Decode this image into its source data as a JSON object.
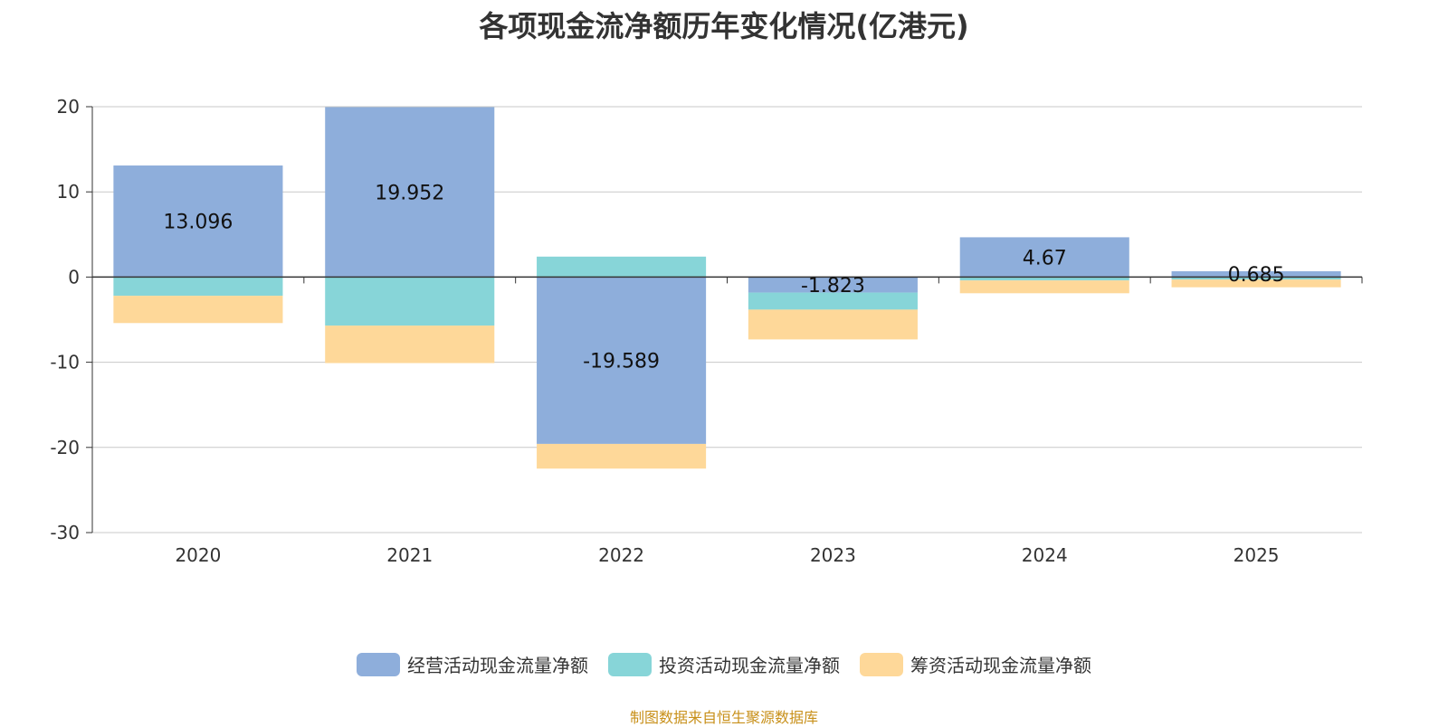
{
  "title": "各项现金流净额历年变化情况(亿港元)",
  "source": "制图数据来自恒生聚源数据库",
  "chart_data": {
    "type": "bar",
    "stacked": true,
    "title": "各项现金流净额历年变化情况(亿港元)",
    "categories": [
      "2020",
      "2021",
      "2022",
      "2023",
      "2024",
      "2025"
    ],
    "ylim": [
      -30,
      20
    ],
    "yticks": [
      20,
      10,
      0,
      -10,
      -20,
      -30
    ],
    "grid": true,
    "legend": "bottom",
    "series": [
      {
        "name": "经营活动现金流量净额",
        "color": "#8eaedb",
        "values": [
          13.096,
          19.952,
          -19.589,
          -1.823,
          4.67,
          0.685
        ],
        "labels": [
          "13.096",
          "19.952",
          "-19.589",
          "-1.823",
          "4.67",
          "0.685"
        ]
      },
      {
        "name": "投资活动现金流量净额",
        "color": "#87d5d8",
        "values": [
          -2.2,
          -5.7,
          2.4,
          -2.0,
          -0.4,
          -0.3
        ]
      },
      {
        "name": "筹资活动现金流量净额",
        "color": "#fed899",
        "values": [
          -3.2,
          -4.4,
          -2.9,
          -3.5,
          -1.5,
          -0.9
        ]
      }
    ]
  }
}
